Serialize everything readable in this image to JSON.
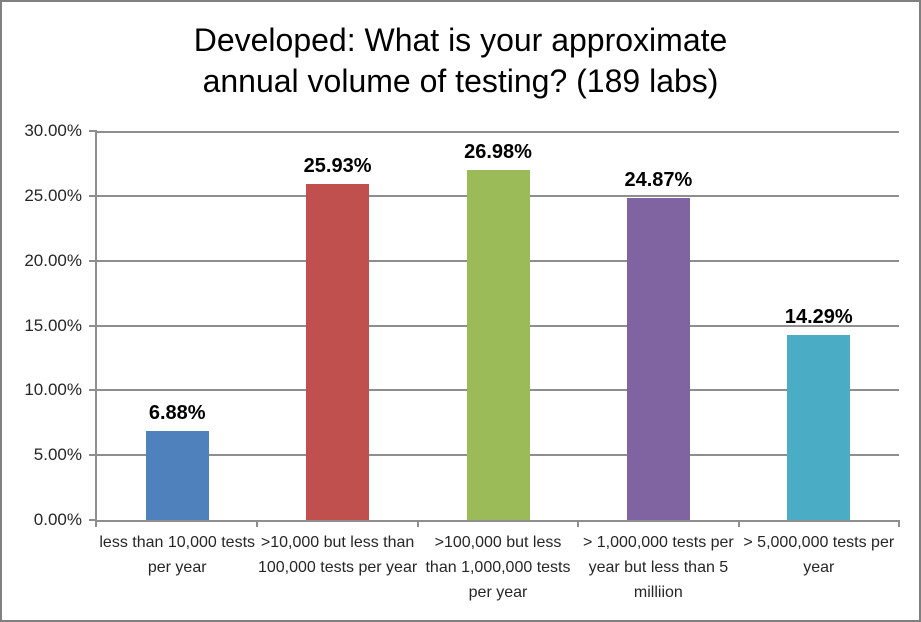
{
  "chart_data": {
    "type": "bar",
    "title": "Developed: What is your approximate annual volume of testing? (189 labs)",
    "title_lines": [
      "Developed: What is your approximate",
      "annual volume of testing? (189 labs)"
    ],
    "categories": [
      "less than 10,000 tests per year",
      ">10,000 but less than 100,000 tests per year",
      ">100,000 but less than 1,000,000 tests per year",
      "> 1,000,000 tests per year but less than 5 milliion",
      "> 5,000,000 tests per year"
    ],
    "values": [
      6.88,
      25.93,
      26.98,
      24.87,
      14.29
    ],
    "value_labels": [
      "6.88%",
      "25.93%",
      "26.98%",
      "24.87%",
      "14.29%"
    ],
    "bar_colors": [
      "#4F81BD",
      "#C0504D",
      "#9BBB59",
      "#8064A2",
      "#4BACC6"
    ],
    "xlabel": "",
    "ylabel": "",
    "ylim": [
      0,
      30
    ],
    "ytick_step": 5,
    "ytick_labels": [
      "0.00%",
      "5.00%",
      "10.00%",
      "15.00%",
      "20.00%",
      "25.00%",
      "30.00%"
    ],
    "grid": true,
    "legend": "none",
    "colors": {
      "background": "#FFFFFF",
      "outer_border": "#808080",
      "gridline": "#8E8E8E",
      "axis_line": "#8E8E8E",
      "axis_text": "#262626",
      "title_text": "#000000",
      "value_label_text": "#000000"
    }
  }
}
